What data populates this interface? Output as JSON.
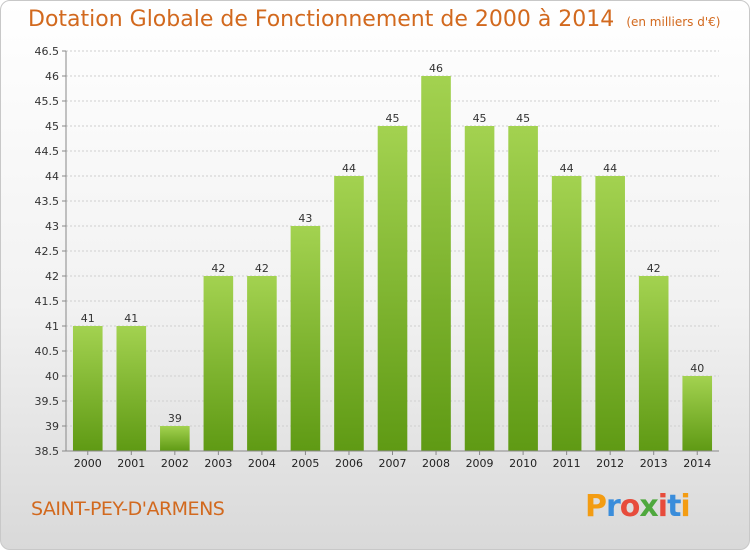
{
  "header": {
    "title": "Dotation Globale de Fonctionnement de 2000 à 2014",
    "unit": "(en milliers d'€)"
  },
  "footer": {
    "commune": "SAINT-PEY-D'ARMENS",
    "logo": "Proxiti"
  },
  "colors": {
    "title": "#d2691e",
    "bar_top": "#a3d250",
    "bar_bottom": "#5f9a14"
  },
  "chart_data": {
    "type": "bar",
    "categories": [
      "2000",
      "2001",
      "2002",
      "2003",
      "2004",
      "2005",
      "2006",
      "2007",
      "2008",
      "2009",
      "2010",
      "2011",
      "2012",
      "2013",
      "2014"
    ],
    "values": [
      41,
      41,
      39,
      42,
      42,
      43,
      44,
      45,
      46,
      45,
      45,
      44,
      44,
      42,
      40
    ],
    "title": "Dotation Globale de Fonctionnement de 2000 à 2014",
    "ylabel": "",
    "xlabel": "",
    "ylim": [
      38.5,
      46.5
    ],
    "ytick_step": 0.5,
    "grid": true,
    "data_labels": true
  }
}
